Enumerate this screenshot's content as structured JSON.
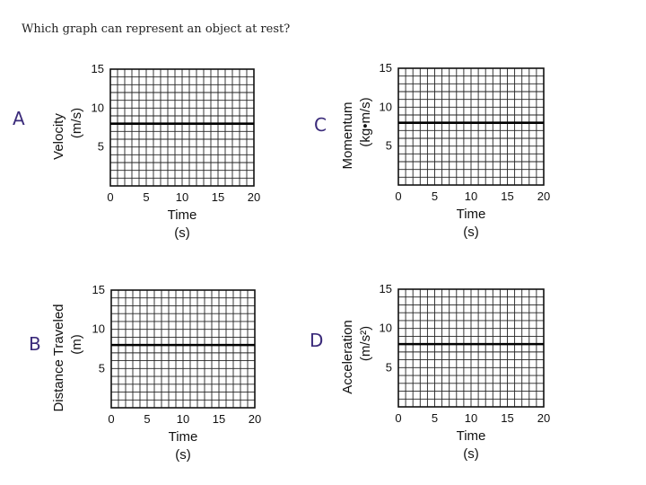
{
  "question": "Which graph can represent an object at rest?",
  "chart_data": [
    {
      "type": "line",
      "panel_letter": "A",
      "xlabel": "Time",
      "xunit": "(s)",
      "ylabel": "Velocity",
      "yunit": "(m/s)",
      "xlim": [
        0,
        20
      ],
      "ylim": [
        0,
        15
      ],
      "xticks": [
        "0",
        "5",
        "10",
        "15",
        "20"
      ],
      "yticks": [
        "5",
        "10",
        "15"
      ],
      "grid": true,
      "grid_step": 1,
      "series": [
        {
          "x": [
            0,
            20
          ],
          "y": [
            8,
            8
          ]
        }
      ]
    },
    {
      "type": "line",
      "panel_letter": "C",
      "xlabel": "Time",
      "xunit": "(s)",
      "ylabel": "Momentum",
      "yunit": "(kg•m/s)",
      "xlim": [
        0,
        20
      ],
      "ylim": [
        0,
        15
      ],
      "xticks": [
        "0",
        "5",
        "10",
        "15",
        "20"
      ],
      "yticks": [
        "5",
        "10",
        "15"
      ],
      "grid": true,
      "grid_step": 1,
      "series": [
        {
          "x": [
            0,
            20
          ],
          "y": [
            8,
            8
          ]
        }
      ]
    },
    {
      "type": "line",
      "panel_letter": "B",
      "xlabel": "Time",
      "xunit": "(s)",
      "ylabel": "Distance Traveled",
      "yunit": "(m)",
      "xlim": [
        0,
        20
      ],
      "ylim": [
        0,
        15
      ],
      "xticks": [
        "0",
        "5",
        "10",
        "15",
        "20"
      ],
      "yticks": [
        "5",
        "10",
        "15"
      ],
      "grid": true,
      "grid_step": 1,
      "series": [
        {
          "x": [
            0,
            20
          ],
          "y": [
            8,
            8
          ]
        }
      ]
    },
    {
      "type": "line",
      "panel_letter": "D",
      "xlabel": "Time",
      "xunit": "(s)",
      "ylabel": "Acceleration",
      "yunit": "(m/s²)",
      "xlim": [
        0,
        20
      ],
      "ylim": [
        0,
        15
      ],
      "xticks": [
        "0",
        "5",
        "10",
        "15",
        "20"
      ],
      "yticks": [
        "5",
        "10",
        "15"
      ],
      "grid": true,
      "grid_step": 1,
      "series": [
        {
          "x": [
            0,
            20
          ],
          "y": [
            8,
            8
          ]
        }
      ]
    }
  ]
}
